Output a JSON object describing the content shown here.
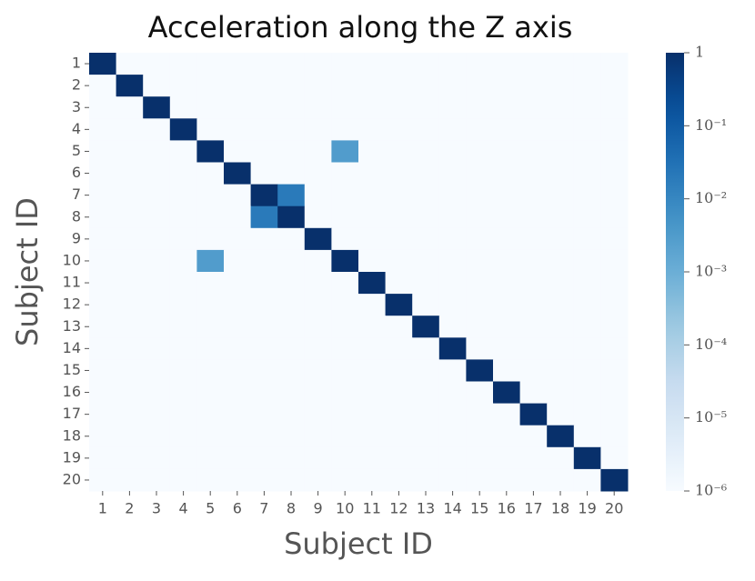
{
  "chart_data": {
    "type": "heatmap",
    "title": "Acceleration along the Z axis",
    "x_label": "Subject ID",
    "y_label": "Subject ID",
    "x_categories": [
      "1",
      "2",
      "3",
      "4",
      "5",
      "6",
      "7",
      "8",
      "9",
      "10",
      "11",
      "12",
      "13",
      "14",
      "15",
      "16",
      "17",
      "18",
      "19",
      "20"
    ],
    "y_categories": [
      "1",
      "2",
      "3",
      "4",
      "5",
      "6",
      "7",
      "8",
      "9",
      "10",
      "11",
      "12",
      "13",
      "14",
      "15",
      "16",
      "17",
      "18",
      "19",
      "20"
    ],
    "z": [
      [
        1,
        1e-06,
        1e-06,
        1e-06,
        1e-06,
        1e-06,
        1e-06,
        1e-06,
        1e-06,
        1e-06,
        1e-06,
        1e-06,
        1e-06,
        1e-06,
        1e-06,
        1e-06,
        1e-06,
        1e-06,
        1e-06,
        1e-06
      ],
      [
        1e-06,
        1,
        1e-06,
        1e-06,
        1e-06,
        1e-06,
        1e-06,
        1e-06,
        1e-06,
        1e-06,
        1e-06,
        1e-06,
        1e-06,
        1e-06,
        1e-06,
        1e-06,
        1e-06,
        1e-06,
        1e-06,
        1e-06
      ],
      [
        1e-06,
        1e-06,
        1,
        1e-06,
        1e-06,
        1e-06,
        1e-06,
        1e-06,
        1e-06,
        1e-06,
        1e-06,
        1e-06,
        1e-06,
        1e-06,
        1e-06,
        1e-06,
        1e-06,
        1e-06,
        1e-06,
        1e-06
      ],
      [
        1e-06,
        1e-06,
        1e-06,
        1,
        1e-06,
        1e-06,
        1e-06,
        1e-06,
        1e-06,
        1e-06,
        1e-06,
        1e-06,
        1e-06,
        1e-06,
        1e-06,
        1e-06,
        1e-06,
        1e-06,
        1e-06,
        1e-06
      ],
      [
        1e-06,
        1e-06,
        1e-06,
        1e-06,
        1,
        1e-06,
        1e-06,
        1e-06,
        1e-06,
        0.003,
        1e-06,
        1e-06,
        1e-06,
        1e-06,
        1e-06,
        1e-06,
        1e-06,
        1e-06,
        1e-06,
        1e-06
      ],
      [
        1e-06,
        1e-06,
        1e-06,
        1e-06,
        1e-06,
        1,
        1e-06,
        1e-06,
        1e-06,
        1e-06,
        1e-06,
        1e-06,
        1e-06,
        1e-06,
        1e-06,
        1e-06,
        1e-06,
        1e-06,
        1e-06,
        1e-06
      ],
      [
        1e-06,
        1e-06,
        1e-06,
        1e-06,
        1e-06,
        1e-06,
        1,
        0.02,
        1e-06,
        1e-06,
        1e-06,
        1e-06,
        1e-06,
        1e-06,
        1e-06,
        1e-06,
        1e-06,
        1e-06,
        1e-06,
        1e-06
      ],
      [
        1e-06,
        1e-06,
        1e-06,
        1e-06,
        1e-06,
        1e-06,
        0.02,
        1,
        1e-06,
        1e-06,
        1e-06,
        1e-06,
        1e-06,
        1e-06,
        1e-06,
        1e-06,
        1e-06,
        1e-06,
        1e-06,
        1e-06
      ],
      [
        1e-06,
        1e-06,
        1e-06,
        1e-06,
        1e-06,
        1e-06,
        1e-06,
        1e-06,
        1,
        1e-06,
        1e-06,
        1e-06,
        1e-06,
        1e-06,
        1e-06,
        1e-06,
        1e-06,
        1e-06,
        1e-06,
        1e-06
      ],
      [
        1e-06,
        1e-06,
        1e-06,
        1e-06,
        0.003,
        1e-06,
        1e-06,
        1e-06,
        1e-06,
        1,
        1e-06,
        1e-06,
        1e-06,
        1e-06,
        1e-06,
        1e-06,
        1e-06,
        1e-06,
        1e-06,
        1e-06
      ],
      [
        1e-06,
        1e-06,
        1e-06,
        1e-06,
        1e-06,
        1e-06,
        1e-06,
        1e-06,
        1e-06,
        1e-06,
        1,
        1e-06,
        1e-06,
        1e-06,
        1e-06,
        1e-06,
        1e-06,
        1e-06,
        1e-06,
        1e-06
      ],
      [
        1e-06,
        1e-06,
        1e-06,
        1e-06,
        1e-06,
        1e-06,
        1e-06,
        1e-06,
        1e-06,
        1e-06,
        1e-06,
        1,
        1e-06,
        1e-06,
        1e-06,
        1e-06,
        1e-06,
        1e-06,
        1e-06,
        1e-06
      ],
      [
        1e-06,
        1e-06,
        1e-06,
        1e-06,
        1e-06,
        1e-06,
        1e-06,
        1e-06,
        1e-06,
        1e-06,
        1e-06,
        1e-06,
        1,
        1e-06,
        1e-06,
        1e-06,
        1e-06,
        1e-06,
        1e-06,
        1e-06
      ],
      [
        1e-06,
        1e-06,
        1e-06,
        1e-06,
        1e-06,
        1e-06,
        1e-06,
        1e-06,
        1e-06,
        1e-06,
        1e-06,
        1e-06,
        1e-06,
        1,
        1e-06,
        1e-06,
        1e-06,
        1e-06,
        1e-06,
        1e-06
      ],
      [
        1e-06,
        1e-06,
        1e-06,
        1e-06,
        1e-06,
        1e-06,
        1e-06,
        1e-06,
        1e-06,
        1e-06,
        1e-06,
        1e-06,
        1e-06,
        1e-06,
        1,
        1e-06,
        1e-06,
        1e-06,
        1e-06,
        1e-06
      ],
      [
        1e-06,
        1e-06,
        1e-06,
        1e-06,
        1e-06,
        1e-06,
        1e-06,
        1e-06,
        1e-06,
        1e-06,
        1e-06,
        1e-06,
        1e-06,
        1e-06,
        1e-06,
        1,
        1e-06,
        1e-06,
        1e-06,
        1e-06
      ],
      [
        1e-06,
        1e-06,
        1e-06,
        1e-06,
        1e-06,
        1e-06,
        1e-06,
        1e-06,
        1e-06,
        1e-06,
        1e-06,
        1e-06,
        1e-06,
        1e-06,
        1e-06,
        1e-06,
        1,
        1e-06,
        1e-06,
        1e-06
      ],
      [
        1e-06,
        1e-06,
        1e-06,
        1e-06,
        1e-06,
        1e-06,
        1e-06,
        1e-06,
        1e-06,
        1e-06,
        1e-06,
        1e-06,
        1e-06,
        1e-06,
        1e-06,
        1e-06,
        1e-06,
        1,
        1e-06,
        1e-06
      ],
      [
        1e-06,
        1e-06,
        1e-06,
        1e-06,
        1e-06,
        1e-06,
        1e-06,
        1e-06,
        1e-06,
        1e-06,
        1e-06,
        1e-06,
        1e-06,
        1e-06,
        1e-06,
        1e-06,
        1e-06,
        1e-06,
        1,
        1e-06
      ],
      [
        1e-06,
        1e-06,
        1e-06,
        1e-06,
        1e-06,
        1e-06,
        1e-06,
        1e-06,
        1e-06,
        1e-06,
        1e-06,
        1e-06,
        1e-06,
        1e-06,
        1e-06,
        1e-06,
        1e-06,
        1e-06,
        1e-06,
        1
      ]
    ],
    "color_scale": "log",
    "colormap": [
      "#f7fbff",
      "#deebf7",
      "#c6dbef",
      "#9ecae1",
      "#6baed6",
      "#4292c6",
      "#2171b5",
      "#08519c",
      "#08306b"
    ],
    "clim": [
      1e-06,
      1
    ],
    "cticks": [
      {
        "value": 1,
        "label": "1"
      },
      {
        "value": 0.1,
        "label": "10⁻¹"
      },
      {
        "value": 0.01,
        "label": "10⁻²"
      },
      {
        "value": 0.001,
        "label": "10⁻³"
      },
      {
        "value": 0.0001,
        "label": "10⁻⁴"
      },
      {
        "value": 1e-05,
        "label": "10⁻⁵"
      },
      {
        "value": 1e-06,
        "label": "10⁻⁶"
      }
    ]
  }
}
